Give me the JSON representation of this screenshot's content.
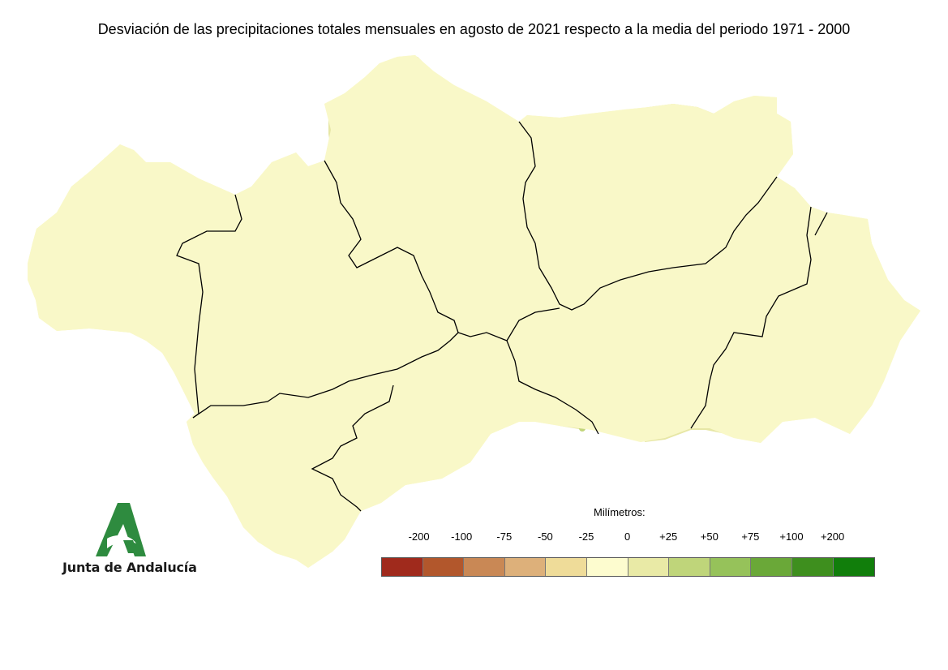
{
  "title": "Desviación de las precipitaciones totales mensuales en agosto de 2021 respecto a la media del periodo 1971 - 2000",
  "logo": {
    "text": "Junta de Andalucía",
    "icon": "junta-andalucia-logo"
  },
  "legend": {
    "title": "Milímetros:",
    "labels": [
      "-200",
      "-100",
      "-75",
      "-50",
      "-25",
      "0",
      "+25",
      "+50",
      "+75",
      "+100",
      "+200"
    ],
    "colors": [
      "#a02a1c",
      "#b2572c",
      "#c98855",
      "#ddb07a",
      "#efdc99",
      "#fdfccf",
      "#e9eaa6",
      "#bfd57a",
      "#96c25a",
      "#6aa838",
      "#3e8f1e",
      "#117e0b"
    ]
  },
  "map_colors": {
    "base": "#f9f8c8",
    "light_positive": "#e7e7a6",
    "mid_positive": "#c2d57a",
    "strong_positive": "#98c25a",
    "peak_positive": "#6aa838"
  }
}
